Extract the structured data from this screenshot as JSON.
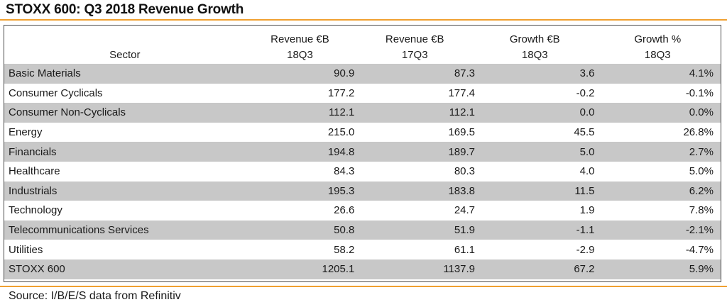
{
  "title": "STOXX 600: Q3 2018 Revenue Growth",
  "table": {
    "header_top": [
      "",
      "Revenue €B",
      "Revenue €B",
      "Growth €B",
      "Growth %"
    ],
    "header_bottom": [
      "Sector",
      "18Q3",
      "17Q3",
      "18Q3",
      "18Q3"
    ],
    "rows": [
      [
        "Basic Materials",
        "90.9",
        "87.3",
        "3.6",
        "4.1%"
      ],
      [
        "Consumer Cyclicals",
        "177.2",
        "177.4",
        "-0.2",
        "-0.1%"
      ],
      [
        "Consumer Non-Cyclicals",
        "112.1",
        "112.1",
        "0.0",
        "0.0%"
      ],
      [
        "Energy",
        "215.0",
        "169.5",
        "45.5",
        "26.8%"
      ],
      [
        "Financials",
        "194.8",
        "189.7",
        "5.0",
        "2.7%"
      ],
      [
        "Healthcare",
        "84.3",
        "80.3",
        "4.0",
        "5.0%"
      ],
      [
        "Industrials",
        "195.3",
        "183.8",
        "11.5",
        "6.2%"
      ],
      [
        "Technology",
        "26.6",
        "24.7",
        "1.9",
        "7.8%"
      ],
      [
        "Telecommunications Services",
        "50.8",
        "51.9",
        "-1.1",
        "-2.1%"
      ],
      [
        "Utilities",
        "58.2",
        "61.1",
        "-2.9",
        "-4.7%"
      ]
    ],
    "total": [
      "STOXX 600",
      "1205.1",
      "1137.9",
      "67.2",
      "5.9%"
    ]
  },
  "source": "Source: I/B/E/S data from Refinitiv",
  "colors": {
    "accent_rule": "#f0a030",
    "row_shade": "#c8c8c8"
  }
}
